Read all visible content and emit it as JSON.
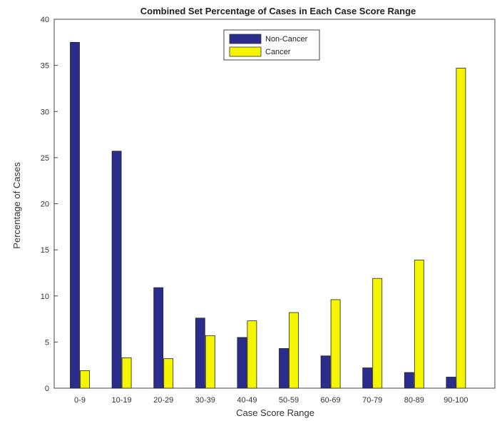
{
  "chart_data": {
    "type": "bar",
    "title": "Combined Set Percentage of Cases in Each Case Score Range",
    "xlabel": "Case Score Range",
    "ylabel": "Percentage of Cases",
    "categories": [
      "0-9",
      "10-19",
      "20-29",
      "30-39",
      "40-49",
      "50-59",
      "60-69",
      "70-79",
      "80-89",
      "90-100"
    ],
    "series": [
      {
        "name": "Non-Cancer",
        "color": "#2a2d8c",
        "values": [
          37.5,
          25.7,
          10.9,
          7.6,
          5.5,
          4.3,
          3.5,
          2.2,
          1.7,
          1.2
        ]
      },
      {
        "name": "Cancer",
        "color": "#f5f500",
        "values": [
          1.9,
          3.3,
          3.2,
          5.7,
          7.3,
          8.2,
          9.6,
          11.9,
          13.9,
          34.7
        ]
      }
    ],
    "ylim": [
      0,
      40
    ],
    "yticks": [
      0,
      5,
      10,
      15,
      20,
      25,
      30,
      35,
      40
    ],
    "grid": false,
    "legend": "top-center"
  }
}
